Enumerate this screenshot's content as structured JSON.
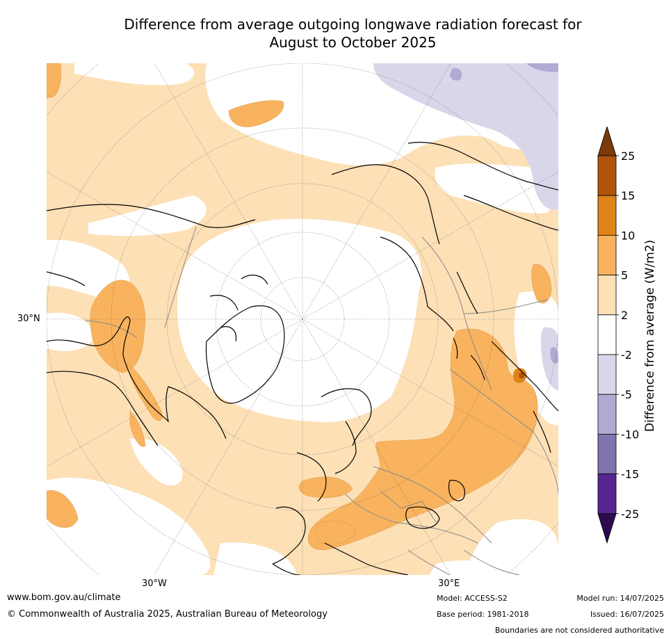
{
  "title": {
    "line1": "Difference from average outgoing longwave radiation forecast for",
    "line2": "August to October 2025"
  },
  "map": {
    "projection": "north-polar-stereographic",
    "lon_labels": [
      "30°W",
      "30°E"
    ],
    "lat_labels": [
      "30°N"
    ]
  },
  "colorbar": {
    "title": "Difference from average (W/m2)",
    "ticks": [
      "25",
      "15",
      "10",
      "5",
      "2",
      "-2",
      "-5",
      "-10",
      "-15",
      "-25"
    ],
    "colors": {
      "over": "#7a3a0a",
      "15_25": "#b0540c",
      "10_15": "#e08318",
      "5_10": "#f9b35e",
      "2_5": "#fde0b6",
      "neutral": "#ffffff",
      "m5_m2": "#d8d7ea",
      "m10_m5": "#b1aad2",
      "m15_m10": "#8073b0",
      "m25_m15": "#572690",
      "under": "#2d0a4e"
    }
  },
  "footer": {
    "url": "www.bom.gov.au/climate",
    "copyright": "© Commonwealth of Australia 2025, Australian Bureau of Meteorology",
    "model": "Model: ACCESS-S2",
    "base_period": "Base period: 1981-2018",
    "model_run": "Model run: 14/07/2025",
    "issued": "Issued: 16/07/2025",
    "disclaimer": "Boundaries are not considered authoritative"
  }
}
